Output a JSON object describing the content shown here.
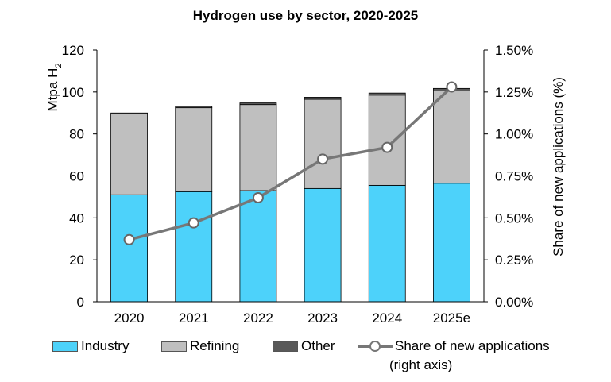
{
  "chart_data": {
    "type": "bar",
    "title": "Hydrogen use by sector, 2020-2025",
    "ylabel": "Mtpa H",
    "ylabel_subscript": "2",
    "y2label": "Share of new applications (%)",
    "ylim": [
      0,
      120
    ],
    "yticks": [
      "0",
      "20",
      "40",
      "60",
      "80",
      "100",
      "120"
    ],
    "y2lim": [
      0,
      1.5
    ],
    "y2ticks": [
      "0.00%",
      "0.25%",
      "0.50%",
      "0.75%",
      "1.00%",
      "1.25%",
      "1.50%"
    ],
    "categories": [
      "2020",
      "2021",
      "2022",
      "2023",
      "2024",
      "2025e"
    ],
    "stacked": true,
    "series": [
      {
        "name": "Industry",
        "type": "bar",
        "color": "#4dd2fa",
        "values": [
          51,
          52.5,
          53,
          54,
          55.5,
          56.5
        ]
      },
      {
        "name": "Refining",
        "type": "bar",
        "color": "#bfbfbf",
        "values": [
          38.5,
          40,
          41,
          42.5,
          43,
          44
        ]
      },
      {
        "name": "Other",
        "type": "bar",
        "color": "#595959",
        "values": [
          0.5,
          0.7,
          0.8,
          1.0,
          1.0,
          1.2
        ]
      },
      {
        "name": "Share of new applications",
        "type": "line",
        "axis": "right",
        "color": "#777777",
        "values": [
          0.37,
          0.47,
          0.62,
          0.85,
          0.92,
          1.28
        ]
      }
    ]
  },
  "legend": {
    "industry": "Industry",
    "refining": "Refining",
    "other": "Other",
    "share": "Share of new applications",
    "share_note": "(right axis)"
  }
}
